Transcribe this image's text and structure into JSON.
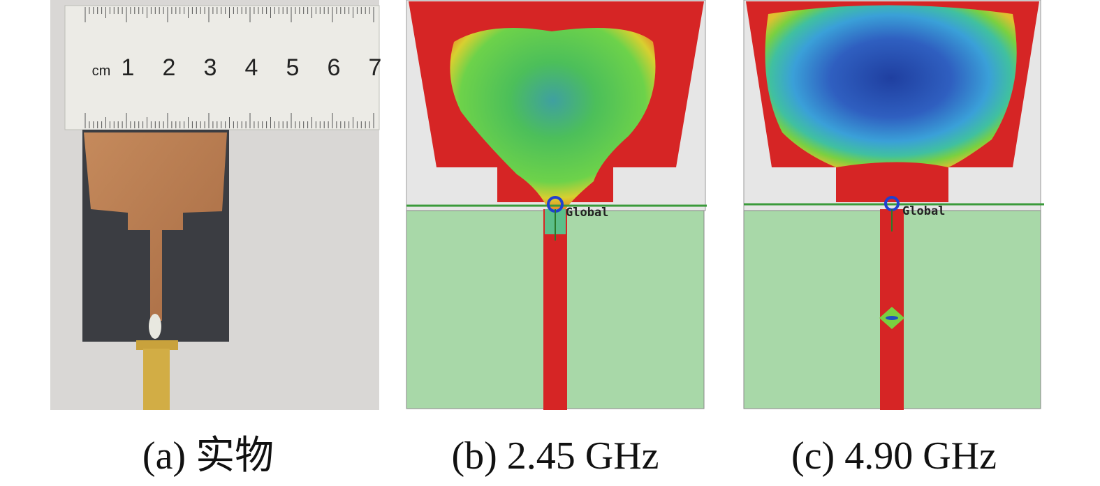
{
  "panels": [
    {
      "caption": "(a) 实物",
      "ruler": {
        "unit": "cm",
        "numbers": [
          "1",
          "2",
          "3",
          "4",
          "5",
          "6",
          "7"
        ]
      }
    },
    {
      "caption": "(b) 2.45 GHz",
      "port_label": "Global"
    },
    {
      "caption": "(c) 4.90 GHz",
      "port_label": "Global"
    }
  ]
}
